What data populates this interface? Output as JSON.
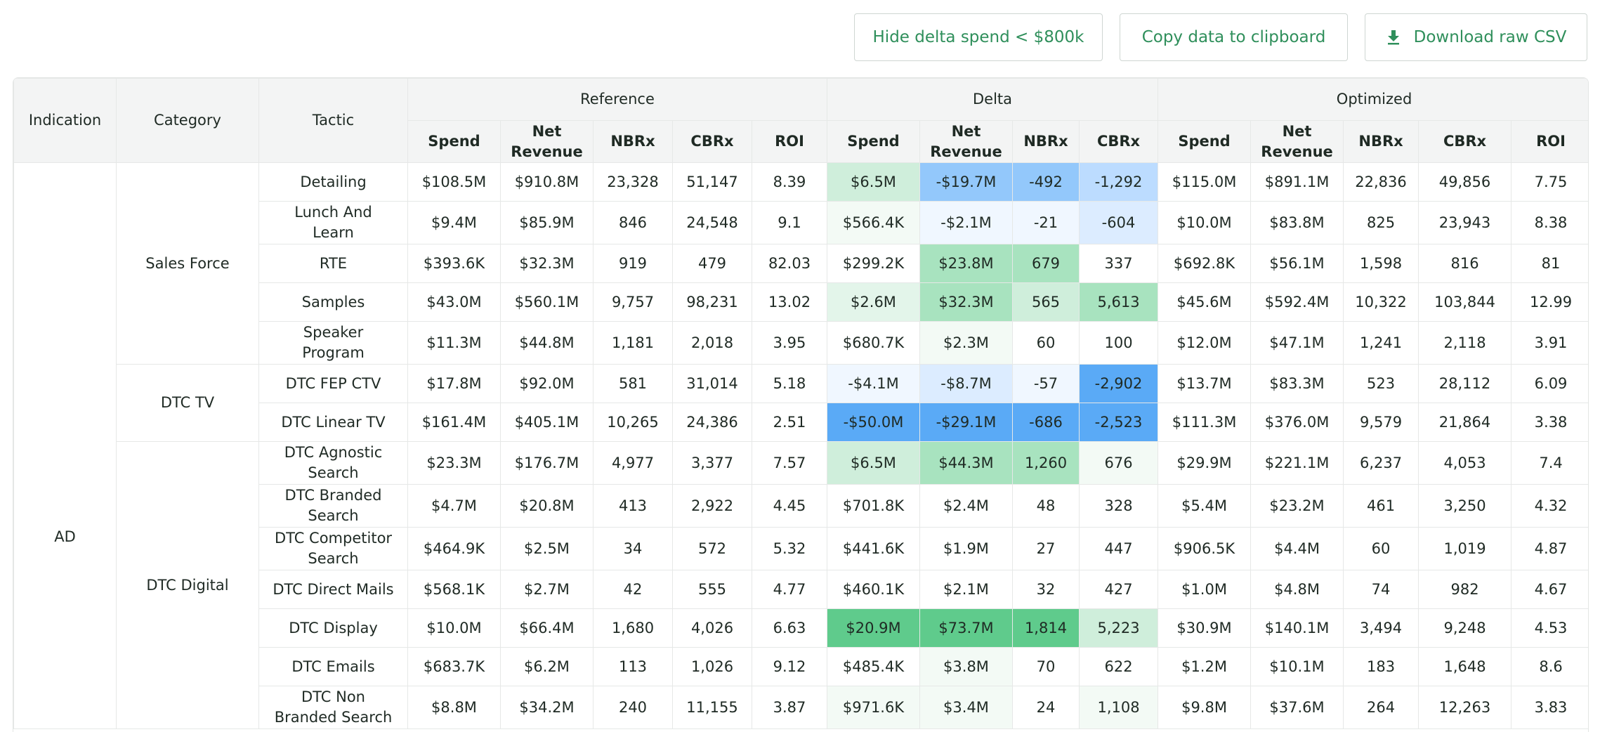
{
  "toolbar": {
    "hide_label": "Hide delta spend < $800k",
    "copy_label": "Copy data to clipboard",
    "csv_label": "Download raw CSV"
  },
  "colors": {
    "accent": "#2f8f5b",
    "header_bg": "#f3f4f4",
    "positive_scale": [
      "#f3faf5",
      "#e3f5ea",
      "#cfeedb",
      "#a8e3bf",
      "#5fcb8c"
    ],
    "negative_scale": [
      "#f0f7ff",
      "#dcecff",
      "#bcdcff",
      "#93c8fb",
      "#5aaaf6"
    ]
  },
  "table": {
    "headers": {
      "indication": "Indication",
      "category": "Category",
      "tactic": "Tactic",
      "groups": [
        "Reference",
        "Delta",
        "Optimized"
      ],
      "metrics": {
        "spend": "Spend",
        "net_revenue": "Net Revenue",
        "nbrx": "NBRx",
        "cbrx": "CBRx",
        "roi": "ROI"
      }
    },
    "indication": "AD",
    "categories": [
      {
        "name": "Sales Force",
        "rows": 5
      },
      {
        "name": "DTC TV",
        "rows": 2
      },
      {
        "name": "DTC Digital",
        "rows": 7
      }
    ],
    "rows": [
      {
        "tactic": "Detailing",
        "ref": [
          "$108.5M",
          "$910.8M",
          "23,328",
          "51,147",
          "8.39"
        ],
        "delta": [
          "$6.5M",
          "-$19.7M",
          "-492",
          "-1,292"
        ],
        "opt": [
          "$115.0M",
          "$891.1M",
          "22,836",
          "49,856",
          "7.75"
        ],
        "shade": [
          "p2",
          "n4",
          "n4",
          "n3"
        ]
      },
      {
        "tactic": "Lunch And Learn",
        "ref": [
          "$9.4M",
          "$85.9M",
          "846",
          "24,548",
          "9.1"
        ],
        "delta": [
          "$566.4K",
          "-$2.1M",
          "-21",
          "-604"
        ],
        "opt": [
          "$10.0M",
          "$83.8M",
          "825",
          "23,943",
          "8.38"
        ],
        "shade": [
          "p0",
          "n1",
          "n1",
          "n2"
        ]
      },
      {
        "tactic": "RTE",
        "ref": [
          "$393.6K",
          "$32.3M",
          "919",
          "479",
          "82.03"
        ],
        "delta": [
          "$299.2K",
          "$23.8M",
          "679",
          "337"
        ],
        "opt": [
          "$692.8K",
          "$56.1M",
          "1,598",
          "816",
          "81"
        ],
        "shade": [
          "w",
          "p3",
          "p3",
          "w"
        ]
      },
      {
        "tactic": "Samples",
        "ref": [
          "$43.0M",
          "$560.1M",
          "9,757",
          "98,231",
          "13.02"
        ],
        "delta": [
          "$2.6M",
          "$32.3M",
          "565",
          "5,613"
        ],
        "opt": [
          "$45.6M",
          "$592.4M",
          "10,322",
          "103,844",
          "12.99"
        ],
        "shade": [
          "p1",
          "p3",
          "p2",
          "p3"
        ]
      },
      {
        "tactic": "Speaker Program",
        "ref": [
          "$11.3M",
          "$44.8M",
          "1,181",
          "2,018",
          "3.95"
        ],
        "delta": [
          "$680.7K",
          "$2.3M",
          "60",
          "100"
        ],
        "opt": [
          "$12.0M",
          "$47.1M",
          "1,241",
          "2,118",
          "3.91"
        ],
        "shade": [
          "w",
          "p0",
          "w",
          "w"
        ]
      },
      {
        "tactic": "DTC FEP CTV",
        "ref": [
          "$17.8M",
          "$92.0M",
          "581",
          "31,014",
          "5.18"
        ],
        "delta": [
          "-$4.1M",
          "-$8.7M",
          "-57",
          "-2,902"
        ],
        "opt": [
          "$13.7M",
          "$83.3M",
          "523",
          "28,112",
          "6.09"
        ],
        "shade": [
          "n1",
          "n2",
          "n1",
          "n5"
        ]
      },
      {
        "tactic": "DTC Linear TV",
        "ref": [
          "$161.4M",
          "$405.1M",
          "10,265",
          "24,386",
          "2.51"
        ],
        "delta": [
          "-$50.0M",
          "-$29.1M",
          "-686",
          "-2,523"
        ],
        "opt": [
          "$111.3M",
          "$376.0M",
          "9,579",
          "21,864",
          "3.38"
        ],
        "shade": [
          "n5",
          "n5",
          "n5",
          "n5"
        ]
      },
      {
        "tactic": "DTC Agnostic Search",
        "ref": [
          "$23.3M",
          "$176.7M",
          "4,977",
          "3,377",
          "7.57"
        ],
        "delta": [
          "$6.5M",
          "$44.3M",
          "1,260",
          "676"
        ],
        "opt": [
          "$29.9M",
          "$221.1M",
          "6,237",
          "4,053",
          "7.4"
        ],
        "shade": [
          "p2",
          "p3",
          "p3",
          "p0"
        ]
      },
      {
        "tactic": "DTC Branded Search",
        "ref": [
          "$4.7M",
          "$20.8M",
          "413",
          "2,922",
          "4.45"
        ],
        "delta": [
          "$701.8K",
          "$2.4M",
          "48",
          "328"
        ],
        "opt": [
          "$5.4M",
          "$23.2M",
          "461",
          "3,250",
          "4.32"
        ],
        "shade": [
          "w",
          "w",
          "w",
          "w"
        ]
      },
      {
        "tactic": "DTC Competitor Search",
        "ref": [
          "$464.9K",
          "$2.5M",
          "34",
          "572",
          "5.32"
        ],
        "delta": [
          "$441.6K",
          "$1.9M",
          "27",
          "447"
        ],
        "opt": [
          "$906.5K",
          "$4.4M",
          "60",
          "1,019",
          "4.87"
        ],
        "shade": [
          "w",
          "w",
          "w",
          "w"
        ]
      },
      {
        "tactic": "DTC Direct Mails",
        "ref": [
          "$568.1K",
          "$2.7M",
          "42",
          "555",
          "4.77"
        ],
        "delta": [
          "$460.1K",
          "$2.1M",
          "32",
          "427"
        ],
        "opt": [
          "$1.0M",
          "$4.8M",
          "74",
          "982",
          "4.67"
        ],
        "shade": [
          "w",
          "w",
          "w",
          "w"
        ]
      },
      {
        "tactic": "DTC Display",
        "ref": [
          "$10.0M",
          "$66.4M",
          "1,680",
          "4,026",
          "6.63"
        ],
        "delta": [
          "$20.9M",
          "$73.7M",
          "1,814",
          "5,223"
        ],
        "opt": [
          "$30.9M",
          "$140.1M",
          "3,494",
          "9,248",
          "4.53"
        ],
        "shade": [
          "p5",
          "p5",
          "p5",
          "p2"
        ]
      },
      {
        "tactic": "DTC Emails",
        "ref": [
          "$683.7K",
          "$6.2M",
          "113",
          "1,026",
          "9.12"
        ],
        "delta": [
          "$485.4K",
          "$3.8M",
          "70",
          "622"
        ],
        "opt": [
          "$1.2M",
          "$10.1M",
          "183",
          "1,648",
          "8.6"
        ],
        "shade": [
          "w",
          "p0",
          "w",
          "w"
        ]
      },
      {
        "tactic": "DTC Non Branded Search",
        "ref": [
          "$8.8M",
          "$34.2M",
          "240",
          "11,155",
          "3.87"
        ],
        "delta": [
          "$971.6K",
          "$3.4M",
          "24",
          "1,108"
        ],
        "opt": [
          "$9.8M",
          "$37.6M",
          "264",
          "12,263",
          "3.83"
        ],
        "shade": [
          "p0",
          "p0",
          "w",
          "p0"
        ]
      }
    ]
  }
}
